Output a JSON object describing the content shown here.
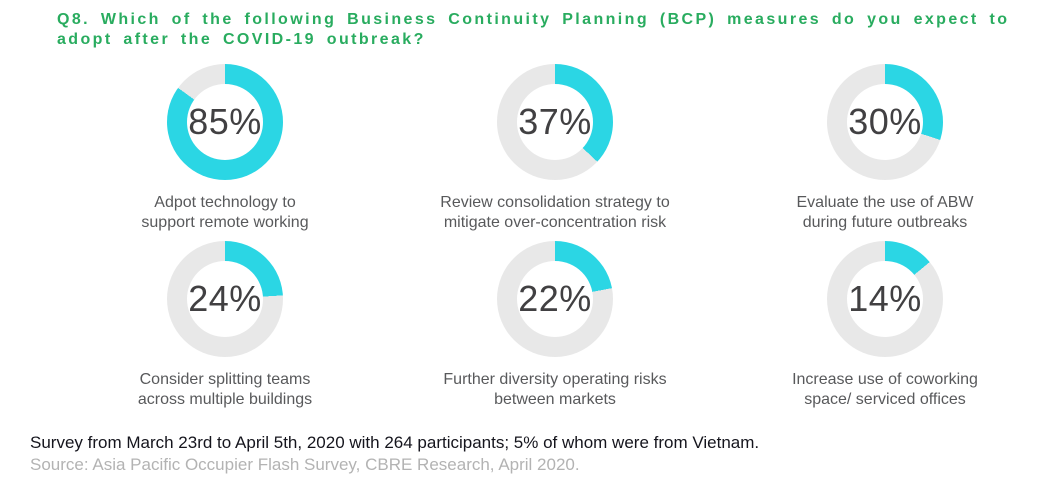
{
  "title": {
    "line1": "Q8. Which of the following Business Continuity Planning (BCP) measures do you expect to",
    "line2": "adopt after the COVID-19 outbreak?",
    "color": "#29AC5F"
  },
  "chart_data": {
    "type": "pie",
    "variant": "donut-small-multiples",
    "title": "Q8. Which of the following Business Continuity Planning (BCP) measures do you expect to adopt after the COVID-19 outbreak?",
    "unit": "%",
    "items": [
      {
        "value": 85,
        "display": "85%",
        "label": "Adpot technology to support remote working",
        "label_lines": [
          "Adpot technology to",
          "support remote working"
        ]
      },
      {
        "value": 37,
        "display": "37%",
        "label": "Review consolidation strategy to mitigate over-concentration risk",
        "label_lines": [
          "Review consolidation strategy to",
          "mitigate over-concentration risk"
        ]
      },
      {
        "value": 30,
        "display": "30%",
        "label": "Evaluate the use of ABW during future outbreaks",
        "label_lines": [
          "Evaluate the use of ABW",
          "during future outbreaks"
        ]
      },
      {
        "value": 24,
        "display": "24%",
        "label": "Consider splitting teams across multiple buildings",
        "label_lines": [
          "Consider splitting teams",
          "across multiple buildings"
        ]
      },
      {
        "value": 22,
        "display": "22%",
        "label": "Further diversity operating risks between markets",
        "label_lines": [
          "Further diversity operating risks",
          "between markets"
        ]
      },
      {
        "value": 14,
        "display": "14%",
        "label": "Increase use of coworking space/ serviced offices",
        "label_lines": [
          "Increase use of coworking",
          "space/ serviced offices"
        ]
      }
    ],
    "colors": {
      "ring": "#2BD6E4",
      "track": "#E8E8E8",
      "percent_text": "#414042",
      "caption_text": "#58595B"
    },
    "layout": {
      "columns": 3,
      "rows": 2,
      "start_angle_deg": 0,
      "direction": "clockwise",
      "legend": "none",
      "grid": false
    }
  },
  "footer": {
    "survey_note": "Survey from March 23rd to April 5th, 2020 with 264 participants; 5% of whom were from Vietnam.",
    "source": "Source: Asia Pacific Occupier Flash Survey, CBRE Research, April 2020."
  }
}
